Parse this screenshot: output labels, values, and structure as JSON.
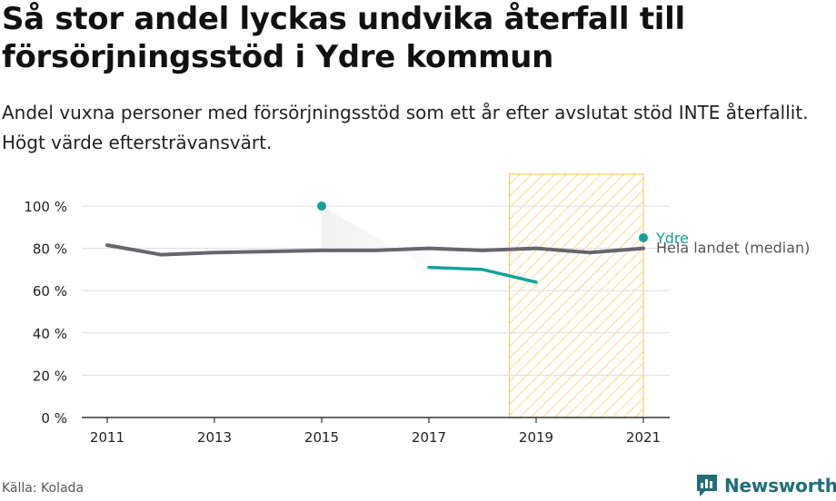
{
  "header": {
    "title": "Så stor andel lyckas undvika återfall till försörjningsstöd i Ydre kommun",
    "subtitle": "Andel vuxna personer med försörjningsstöd som ett år efter avslutat stöd INTE återfallit. Högt värde eftersträvansvärt."
  },
  "footer": {
    "source": "Källa: Kolada",
    "brand": "Newsworthy"
  },
  "colors": {
    "ydre": "#11a39a",
    "median": "#666670",
    "highlight": "#f7cf6a",
    "grid": "#dddddd",
    "brand": "#1f6f78"
  },
  "icons": {
    "brand_logo": "newsworthy-chart-bubble-icon"
  },
  "chart_data": {
    "type": "line",
    "title": "Så stor andel lyckas undvika återfall till försörjningsstöd i Ydre kommun",
    "subtitle": "Andel vuxna personer med försörjningsstöd som ett år efter avslutat stöd INTE återfallit. Högt värde eftersträvansvärt.",
    "xlabel": "",
    "ylabel": "",
    "xlim": [
      2011,
      2021
    ],
    "ylim": [
      0,
      100
    ],
    "xticks": [
      2011,
      2013,
      2015,
      2017,
      2019,
      2021
    ],
    "yticks": [
      0,
      20,
      40,
      60,
      80,
      100
    ],
    "ytick_labels": [
      "0 %",
      "20 %",
      "40 %",
      "60 %",
      "80 %",
      "100 %"
    ],
    "grid": true,
    "highlight_range": [
      2018.5,
      2021
    ],
    "series": [
      {
        "name": "Ydre",
        "x": [
          2011,
          2012,
          2013,
          2014,
          2015,
          2016,
          2017,
          2018,
          2019,
          2020,
          2021
        ],
        "values": [
          null,
          null,
          null,
          null,
          100,
          null,
          71,
          70,
          64,
          null,
          85
        ]
      },
      {
        "name": "Hela landet (median)",
        "x": [
          2011,
          2012,
          2013,
          2014,
          2015,
          2016,
          2017,
          2018,
          2019,
          2020,
          2021
        ],
        "values": [
          81.5,
          77,
          78,
          78.5,
          79,
          79,
          80,
          79,
          80,
          78,
          80
        ]
      }
    ]
  }
}
